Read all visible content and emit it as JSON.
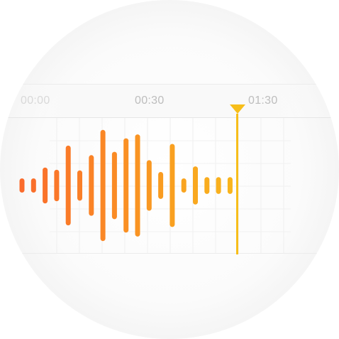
{
  "timeline": {
    "labels": [
      "00:00",
      "00:30",
      "01:30"
    ]
  },
  "waveform": {
    "bar_levels": [
      0.12,
      0.09,
      0.32,
      0.28,
      0.71,
      0.27,
      0.54,
      0.99,
      0.6,
      0.84,
      0.91,
      0.45,
      0.24,
      0.74,
      0.12,
      0.34,
      0.15,
      0.15,
      0.15
    ],
    "color_start": "#fa6b2c",
    "color_end": "#f9b41c"
  },
  "playhead": {
    "color": "#f7be1a"
  }
}
